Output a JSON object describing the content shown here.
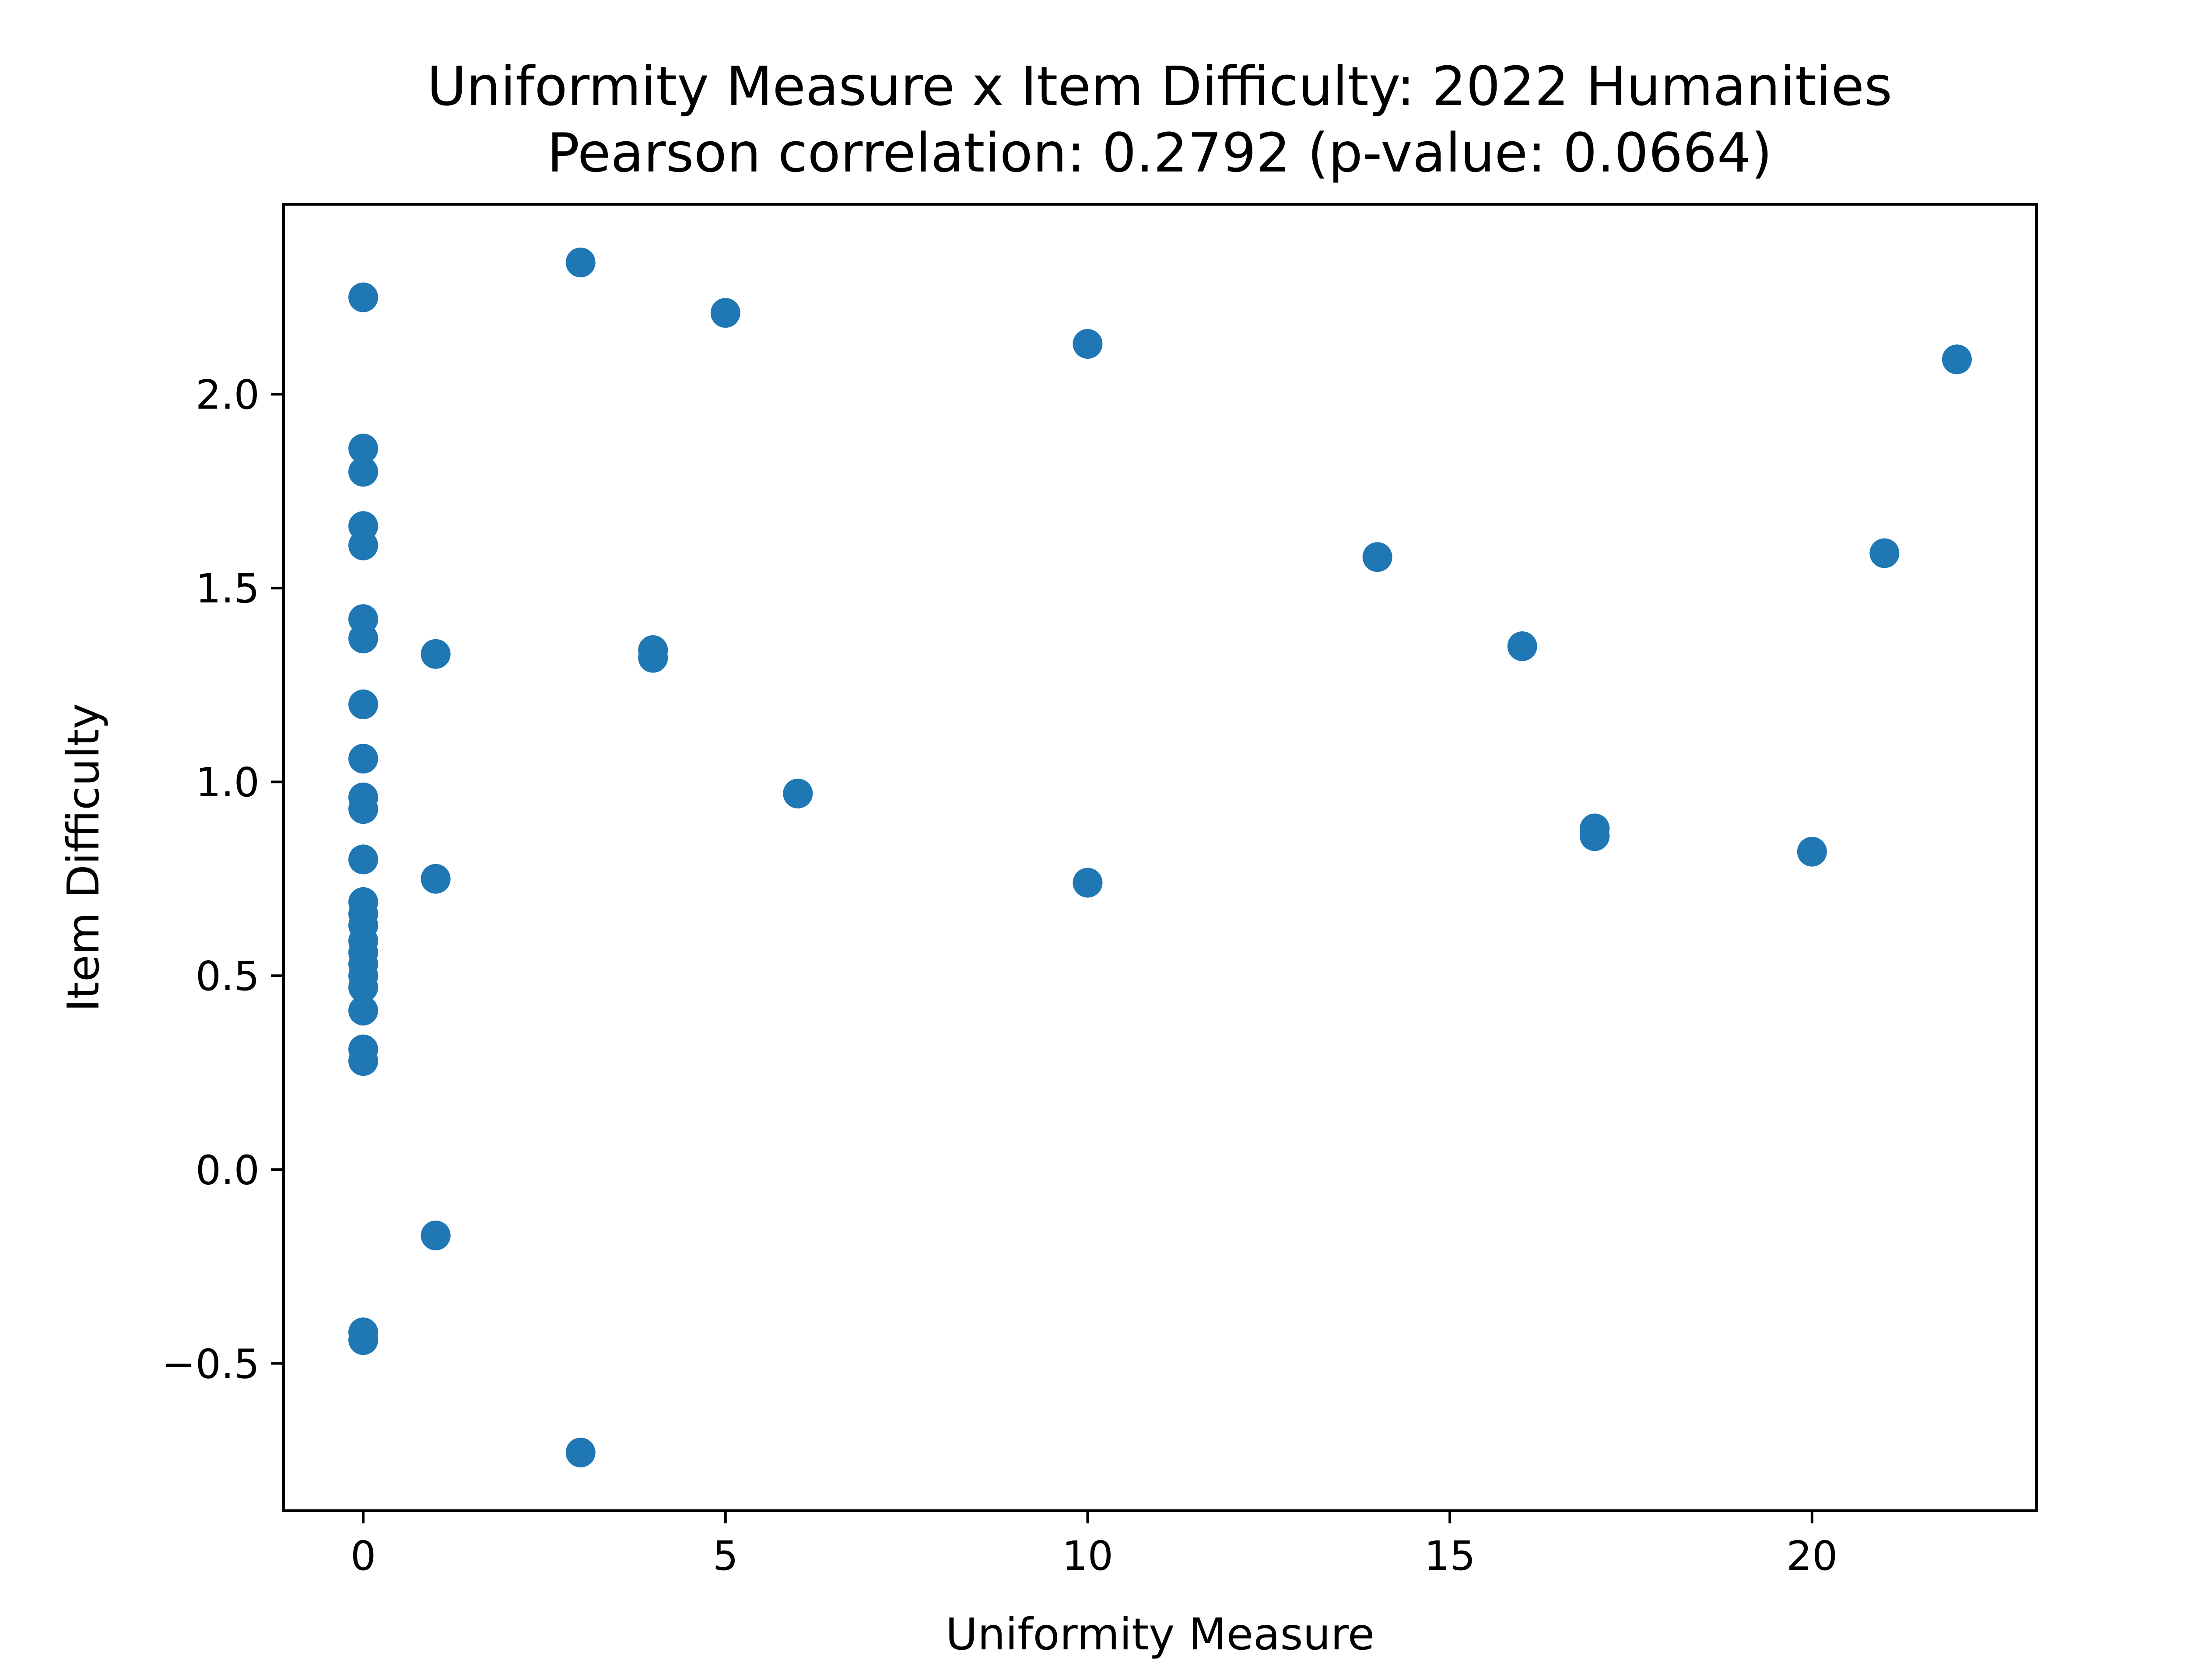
{
  "chart_data": {
    "type": "scatter",
    "title": "Uniformity Measure x Item Difficulty: 2022 Humanities",
    "subtitle": "Pearson correlation: 0.2792 (p-value: 0.0664)",
    "xlabel": "Uniformity Measure",
    "ylabel": "Item Difficulty",
    "xlim": [
      -1.1,
      23.1
    ],
    "ylim": [
      -0.88,
      2.49
    ],
    "xticks": [
      0,
      5,
      10,
      15,
      20
    ],
    "xtick_labels": [
      "0",
      "5",
      "10",
      "15",
      "20"
    ],
    "yticks": [
      -0.5,
      0.0,
      0.5,
      1.0,
      1.5,
      2.0
    ],
    "ytick_labels": [
      "−0.5",
      "0.0",
      "0.5",
      "1.0",
      "1.5",
      "2.0"
    ],
    "grid": false,
    "marker_color": "#1f77b4",
    "series": [
      {
        "points": [
          [
            0,
            2.25
          ],
          [
            0,
            1.86
          ],
          [
            0,
            1.8
          ],
          [
            0,
            1.66
          ],
          [
            0,
            1.61
          ],
          [
            0,
            1.42
          ],
          [
            0,
            1.37
          ],
          [
            0,
            1.2
          ],
          [
            0,
            1.06
          ],
          [
            0,
            0.96
          ],
          [
            0,
            0.93
          ],
          [
            0,
            0.8
          ],
          [
            0,
            0.69
          ],
          [
            0,
            0.66
          ],
          [
            0,
            0.63
          ],
          [
            0,
            0.59
          ],
          [
            0,
            0.56
          ],
          [
            0,
            0.53
          ],
          [
            0,
            0.5
          ],
          [
            0,
            0.47
          ],
          [
            0,
            0.41
          ],
          [
            0,
            0.31
          ],
          [
            0,
            0.28
          ],
          [
            0,
            -0.42
          ],
          [
            0,
            -0.44
          ],
          [
            1,
            1.33
          ],
          [
            1,
            0.75
          ],
          [
            1,
            -0.17
          ],
          [
            3,
            2.34
          ],
          [
            3,
            -0.73
          ],
          [
            4,
            1.34
          ],
          [
            4,
            1.32
          ],
          [
            5,
            2.21
          ],
          [
            6,
            0.97
          ],
          [
            10,
            2.13
          ],
          [
            10,
            0.74
          ],
          [
            14,
            1.58
          ],
          [
            16,
            1.35
          ],
          [
            17,
            0.88
          ],
          [
            17,
            0.86
          ],
          [
            20,
            0.82
          ],
          [
            21,
            1.59
          ],
          [
            22,
            2.09
          ]
        ]
      }
    ]
  }
}
